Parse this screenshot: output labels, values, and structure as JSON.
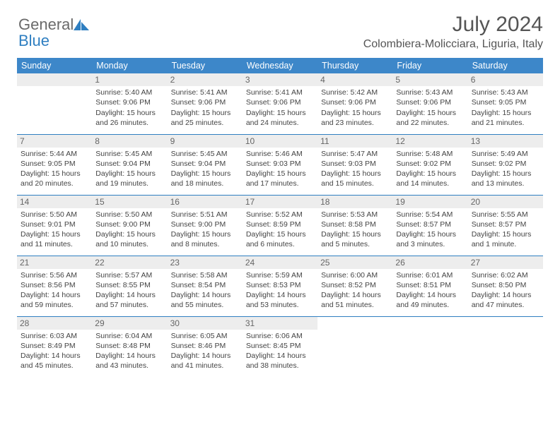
{
  "brand": {
    "name1": "General",
    "name2": "Blue"
  },
  "title": "July 2024",
  "location": "Colombiera-Molicciara, Liguria, Italy",
  "weekday_headers": [
    "Sunday",
    "Monday",
    "Tuesday",
    "Wednesday",
    "Thursday",
    "Friday",
    "Saturday"
  ],
  "colors": {
    "header_bg": "#3d87c9",
    "header_text": "#ffffff",
    "rule": "#2f7fc1",
    "daynum_bg": "#ededed",
    "body_text": "#444444",
    "brand_gray": "#6a6a6a",
    "brand_blue": "#2f7fc1"
  },
  "weeks": [
    [
      {
        "day": "",
        "lines": []
      },
      {
        "day": "1",
        "lines": [
          "Sunrise: 5:40 AM",
          "Sunset: 9:06 PM",
          "Daylight: 15 hours and 26 minutes."
        ]
      },
      {
        "day": "2",
        "lines": [
          "Sunrise: 5:41 AM",
          "Sunset: 9:06 PM",
          "Daylight: 15 hours and 25 minutes."
        ]
      },
      {
        "day": "3",
        "lines": [
          "Sunrise: 5:41 AM",
          "Sunset: 9:06 PM",
          "Daylight: 15 hours and 24 minutes."
        ]
      },
      {
        "day": "4",
        "lines": [
          "Sunrise: 5:42 AM",
          "Sunset: 9:06 PM",
          "Daylight: 15 hours and 23 minutes."
        ]
      },
      {
        "day": "5",
        "lines": [
          "Sunrise: 5:43 AM",
          "Sunset: 9:06 PM",
          "Daylight: 15 hours and 22 minutes."
        ]
      },
      {
        "day": "6",
        "lines": [
          "Sunrise: 5:43 AM",
          "Sunset: 9:05 PM",
          "Daylight: 15 hours and 21 minutes."
        ]
      }
    ],
    [
      {
        "day": "7",
        "lines": [
          "Sunrise: 5:44 AM",
          "Sunset: 9:05 PM",
          "Daylight: 15 hours and 20 minutes."
        ]
      },
      {
        "day": "8",
        "lines": [
          "Sunrise: 5:45 AM",
          "Sunset: 9:04 PM",
          "Daylight: 15 hours and 19 minutes."
        ]
      },
      {
        "day": "9",
        "lines": [
          "Sunrise: 5:45 AM",
          "Sunset: 9:04 PM",
          "Daylight: 15 hours and 18 minutes."
        ]
      },
      {
        "day": "10",
        "lines": [
          "Sunrise: 5:46 AM",
          "Sunset: 9:03 PM",
          "Daylight: 15 hours and 17 minutes."
        ]
      },
      {
        "day": "11",
        "lines": [
          "Sunrise: 5:47 AM",
          "Sunset: 9:03 PM",
          "Daylight: 15 hours and 15 minutes."
        ]
      },
      {
        "day": "12",
        "lines": [
          "Sunrise: 5:48 AM",
          "Sunset: 9:02 PM",
          "Daylight: 15 hours and 14 minutes."
        ]
      },
      {
        "day": "13",
        "lines": [
          "Sunrise: 5:49 AM",
          "Sunset: 9:02 PM",
          "Daylight: 15 hours and 13 minutes."
        ]
      }
    ],
    [
      {
        "day": "14",
        "lines": [
          "Sunrise: 5:50 AM",
          "Sunset: 9:01 PM",
          "Daylight: 15 hours and 11 minutes."
        ]
      },
      {
        "day": "15",
        "lines": [
          "Sunrise: 5:50 AM",
          "Sunset: 9:00 PM",
          "Daylight: 15 hours and 10 minutes."
        ]
      },
      {
        "day": "16",
        "lines": [
          "Sunrise: 5:51 AM",
          "Sunset: 9:00 PM",
          "Daylight: 15 hours and 8 minutes."
        ]
      },
      {
        "day": "17",
        "lines": [
          "Sunrise: 5:52 AM",
          "Sunset: 8:59 PM",
          "Daylight: 15 hours and 6 minutes."
        ]
      },
      {
        "day": "18",
        "lines": [
          "Sunrise: 5:53 AM",
          "Sunset: 8:58 PM",
          "Daylight: 15 hours and 5 minutes."
        ]
      },
      {
        "day": "19",
        "lines": [
          "Sunrise: 5:54 AM",
          "Sunset: 8:57 PM",
          "Daylight: 15 hours and 3 minutes."
        ]
      },
      {
        "day": "20",
        "lines": [
          "Sunrise: 5:55 AM",
          "Sunset: 8:57 PM",
          "Daylight: 15 hours and 1 minute."
        ]
      }
    ],
    [
      {
        "day": "21",
        "lines": [
          "Sunrise: 5:56 AM",
          "Sunset: 8:56 PM",
          "Daylight: 14 hours and 59 minutes."
        ]
      },
      {
        "day": "22",
        "lines": [
          "Sunrise: 5:57 AM",
          "Sunset: 8:55 PM",
          "Daylight: 14 hours and 57 minutes."
        ]
      },
      {
        "day": "23",
        "lines": [
          "Sunrise: 5:58 AM",
          "Sunset: 8:54 PM",
          "Daylight: 14 hours and 55 minutes."
        ]
      },
      {
        "day": "24",
        "lines": [
          "Sunrise: 5:59 AM",
          "Sunset: 8:53 PM",
          "Daylight: 14 hours and 53 minutes."
        ]
      },
      {
        "day": "25",
        "lines": [
          "Sunrise: 6:00 AM",
          "Sunset: 8:52 PM",
          "Daylight: 14 hours and 51 minutes."
        ]
      },
      {
        "day": "26",
        "lines": [
          "Sunrise: 6:01 AM",
          "Sunset: 8:51 PM",
          "Daylight: 14 hours and 49 minutes."
        ]
      },
      {
        "day": "27",
        "lines": [
          "Sunrise: 6:02 AM",
          "Sunset: 8:50 PM",
          "Daylight: 14 hours and 47 minutes."
        ]
      }
    ],
    [
      {
        "day": "28",
        "lines": [
          "Sunrise: 6:03 AM",
          "Sunset: 8:49 PM",
          "Daylight: 14 hours and 45 minutes."
        ]
      },
      {
        "day": "29",
        "lines": [
          "Sunrise: 6:04 AM",
          "Sunset: 8:48 PM",
          "Daylight: 14 hours and 43 minutes."
        ]
      },
      {
        "day": "30",
        "lines": [
          "Sunrise: 6:05 AM",
          "Sunset: 8:46 PM",
          "Daylight: 14 hours and 41 minutes."
        ]
      },
      {
        "day": "31",
        "lines": [
          "Sunrise: 6:06 AM",
          "Sunset: 8:45 PM",
          "Daylight: 14 hours and 38 minutes."
        ]
      },
      {
        "day": "",
        "lines": []
      },
      {
        "day": "",
        "lines": []
      },
      {
        "day": "",
        "lines": []
      }
    ]
  ]
}
